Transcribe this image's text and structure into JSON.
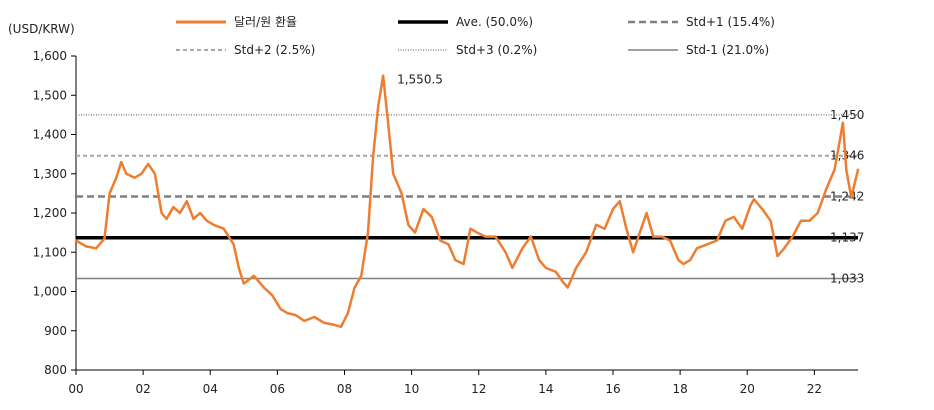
{
  "chart_data": {
    "type": "line",
    "ylabel": "(USD/KRW)",
    "ylim": [
      800,
      1600
    ],
    "yticks": [
      800,
      900,
      1000,
      1100,
      1200,
      1300,
      1400,
      1500,
      1600
    ],
    "ytick_labels": [
      "800",
      "900",
      "1,000",
      "1,100",
      "1,200",
      "1,300",
      "1,400",
      "1,500",
      "1,600"
    ],
    "xlim": [
      2000,
      2023.3
    ],
    "xticks": [
      2000,
      2002,
      2004,
      2006,
      2008,
      2010,
      2012,
      2014,
      2016,
      2018,
      2020,
      2022
    ],
    "xtick_labels": [
      "00",
      "02",
      "04",
      "06",
      "08",
      "10",
      "12",
      "14",
      "16",
      "18",
      "20",
      "22"
    ],
    "grid": false,
    "legend_position": "top",
    "colors": {
      "main": "#ED7D31",
      "avg": "#000000",
      "std1": "#7F7F7F",
      "std2": "#A6A6A6",
      "std3": "#8C8C8C",
      "stdm1": "#808080"
    },
    "series": [
      {
        "name": "달러/원 환율",
        "x": [
          2000.0,
          2000.3,
          2000.6,
          2000.85,
          2001.0,
          2001.2,
          2001.35,
          2001.5,
          2001.75,
          2001.95,
          2002.15,
          2002.35,
          2002.55,
          2002.7,
          2002.9,
          2003.1,
          2003.3,
          2003.5,
          2003.7,
          2003.9,
          2004.1,
          2004.4,
          2004.7,
          2004.85,
          2005.0,
          2005.3,
          2005.6,
          2005.85,
          2006.1,
          2006.3,
          2006.55,
          2006.8,
          2007.1,
          2007.4,
          2007.7,
          2007.9,
          2008.1,
          2008.3,
          2008.5,
          2008.7,
          2008.85,
          2009.0,
          2009.15,
          2009.3,
          2009.45,
          2009.7,
          2009.9,
          2010.1,
          2010.35,
          2010.6,
          2010.85,
          2011.1,
          2011.3,
          2011.55,
          2011.75,
          2011.95,
          2012.2,
          2012.5,
          2012.8,
          2013.0,
          2013.3,
          2013.55,
          2013.8,
          2014.0,
          2014.3,
          2014.5,
          2014.65,
          2014.9,
          2015.2,
          2015.5,
          2015.75,
          2016.0,
          2016.2,
          2016.4,
          2016.6,
          2016.8,
          2017.0,
          2017.2,
          2017.45,
          2017.7,
          2017.95,
          2018.1,
          2018.3,
          2018.5,
          2018.8,
          2019.1,
          2019.35,
          2019.6,
          2019.85,
          2020.1,
          2020.2,
          2020.45,
          2020.7,
          2020.9,
          2021.1,
          2021.35,
          2021.6,
          2021.85,
          2022.1,
          2022.35,
          2022.6,
          2022.75,
          2022.85,
          2022.95,
          2023.1,
          2023.3
        ],
        "values": [
          1130,
          1115,
          1110,
          1135,
          1250,
          1290,
          1330,
          1300,
          1290,
          1300,
          1325,
          1300,
          1200,
          1185,
          1215,
          1200,
          1230,
          1185,
          1200,
          1180,
          1170,
          1160,
          1120,
          1060,
          1020,
          1040,
          1010,
          990,
          955,
          945,
          940,
          925,
          935,
          920,
          915,
          910,
          945,
          1010,
          1040,
          1150,
          1340,
          1470,
          1550,
          1430,
          1300,
          1250,
          1170,
          1150,
          1210,
          1190,
          1130,
          1120,
          1080,
          1070,
          1160,
          1150,
          1140,
          1140,
          1100,
          1060,
          1110,
          1140,
          1080,
          1060,
          1050,
          1025,
          1010,
          1060,
          1100,
          1170,
          1160,
          1210,
          1230,
          1160,
          1100,
          1150,
          1200,
          1140,
          1140,
          1130,
          1080,
          1070,
          1080,
          1110,
          1120,
          1130,
          1180,
          1190,
          1160,
          1220,
          1235,
          1210,
          1180,
          1090,
          1110,
          1140,
          1180,
          1180,
          1200,
          1260,
          1310,
          1380,
          1430,
          1310,
          1240,
          1310
        ]
      }
    ],
    "reference_lines": [
      {
        "name": "Ave. (50.0%)",
        "value": 1137,
        "label": "1,137",
        "style": "avg"
      },
      {
        "name": "Std+1 (15.4%)",
        "value": 1242,
        "label": "1,242",
        "style": "std1"
      },
      {
        "name": "Std+2 (2.5%)",
        "value": 1346,
        "label": "1,346",
        "style": "std2"
      },
      {
        "name": "Std+3 (0.2%)",
        "value": 1450,
        "label": "1,450",
        "style": "std3"
      },
      {
        "name": "Std-1 (21.0%)",
        "value": 1033,
        "label": "1,033",
        "style": "stdm1"
      }
    ],
    "annotations": [
      {
        "text": "1,550.5",
        "x": 2009.15,
        "y": 1550.5
      }
    ],
    "legend": [
      {
        "label": "달러/원 환율",
        "style": "main"
      },
      {
        "label": "Ave. (50.0%)",
        "style": "avg"
      },
      {
        "label": "Std+1 (15.4%)",
        "style": "std1"
      },
      {
        "label": "Std+2 (2.5%)",
        "style": "std2"
      },
      {
        "label": "Std+3 (0.2%)",
        "style": "std3"
      },
      {
        "label": "Std-1 (21.0%)",
        "style": "stdm1"
      }
    ]
  }
}
